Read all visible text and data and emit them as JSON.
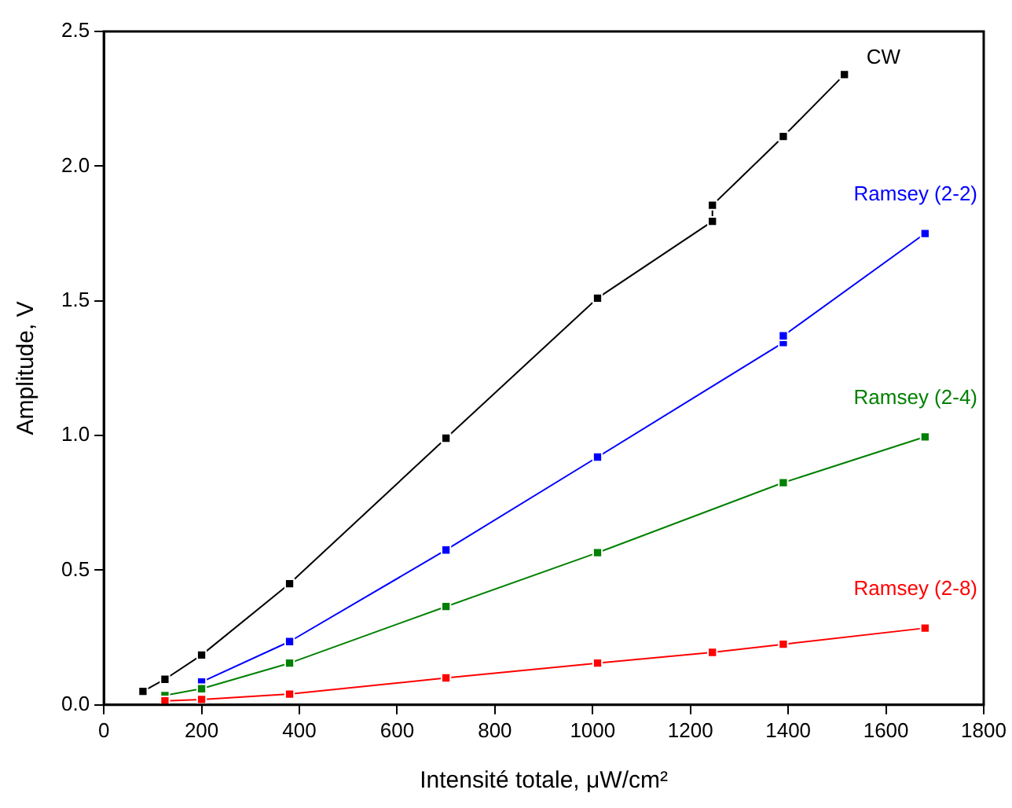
{
  "chart_data": {
    "type": "line",
    "xlabel": "Intensité totale, μW/cm²",
    "ylabel": "Amplitude, V",
    "xlim": [
      0,
      1800
    ],
    "xticks": [
      0,
      200,
      400,
      600,
      800,
      1000,
      1200,
      1400,
      1600,
      1800
    ],
    "ylim": [
      0,
      2.5
    ],
    "yticks": [
      {
        "value": 0,
        "label": "0.0"
      },
      {
        "value": 0.5,
        "label": "0.5"
      },
      {
        "value": 1,
        "label": "1.0"
      },
      {
        "value": 1.5,
        "label": "1.5"
      },
      {
        "value": 2,
        "label": "2.0"
      },
      {
        "value": 2.5,
        "label": "2.5"
      }
    ],
    "grid": false,
    "legend": false,
    "marker": "square",
    "line_style": "solid",
    "series": [
      {
        "name": "CW",
        "color": "#000000",
        "x": [
          80,
          125,
          200,
          380,
          700,
          1010,
          1245,
          1245,
          1390,
          1515
        ],
        "values": [
          0.05,
          0.095,
          0.185,
          0.45,
          0.99,
          1.51,
          1.795,
          1.855,
          2.11,
          2.34
        ]
      },
      {
        "name": "Ramsey (2-2)",
        "color": "#0000ff",
        "x": [
          200,
          380,
          700,
          1010,
          1390,
          1390,
          1680
        ],
        "values": [
          0.085,
          0.235,
          0.575,
          0.92,
          1.345,
          1.37,
          1.75
        ]
      },
      {
        "name": "Ramsey (2-4)",
        "color": "#008000",
        "x": [
          125,
          200,
          380,
          700,
          1010,
          1390,
          1680
        ],
        "values": [
          0.035,
          0.06,
          0.155,
          0.365,
          0.565,
          0.825,
          0.995
        ]
      },
      {
        "name": "Ramsey (2-8)",
        "color": "#ff0000",
        "x": [
          125,
          200,
          380,
          700,
          1010,
          1245,
          1390,
          1680
        ],
        "values": [
          0.015,
          0.02,
          0.04,
          0.1,
          0.155,
          0.195,
          0.225,
          0.285
        ]
      }
    ]
  }
}
